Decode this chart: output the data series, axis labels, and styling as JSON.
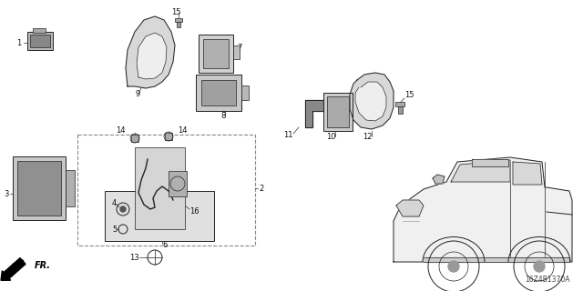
{
  "bg_color": "#ffffff",
  "fig_width": 6.4,
  "fig_height": 3.2,
  "diagram_code": "16Z4B1370A"
}
